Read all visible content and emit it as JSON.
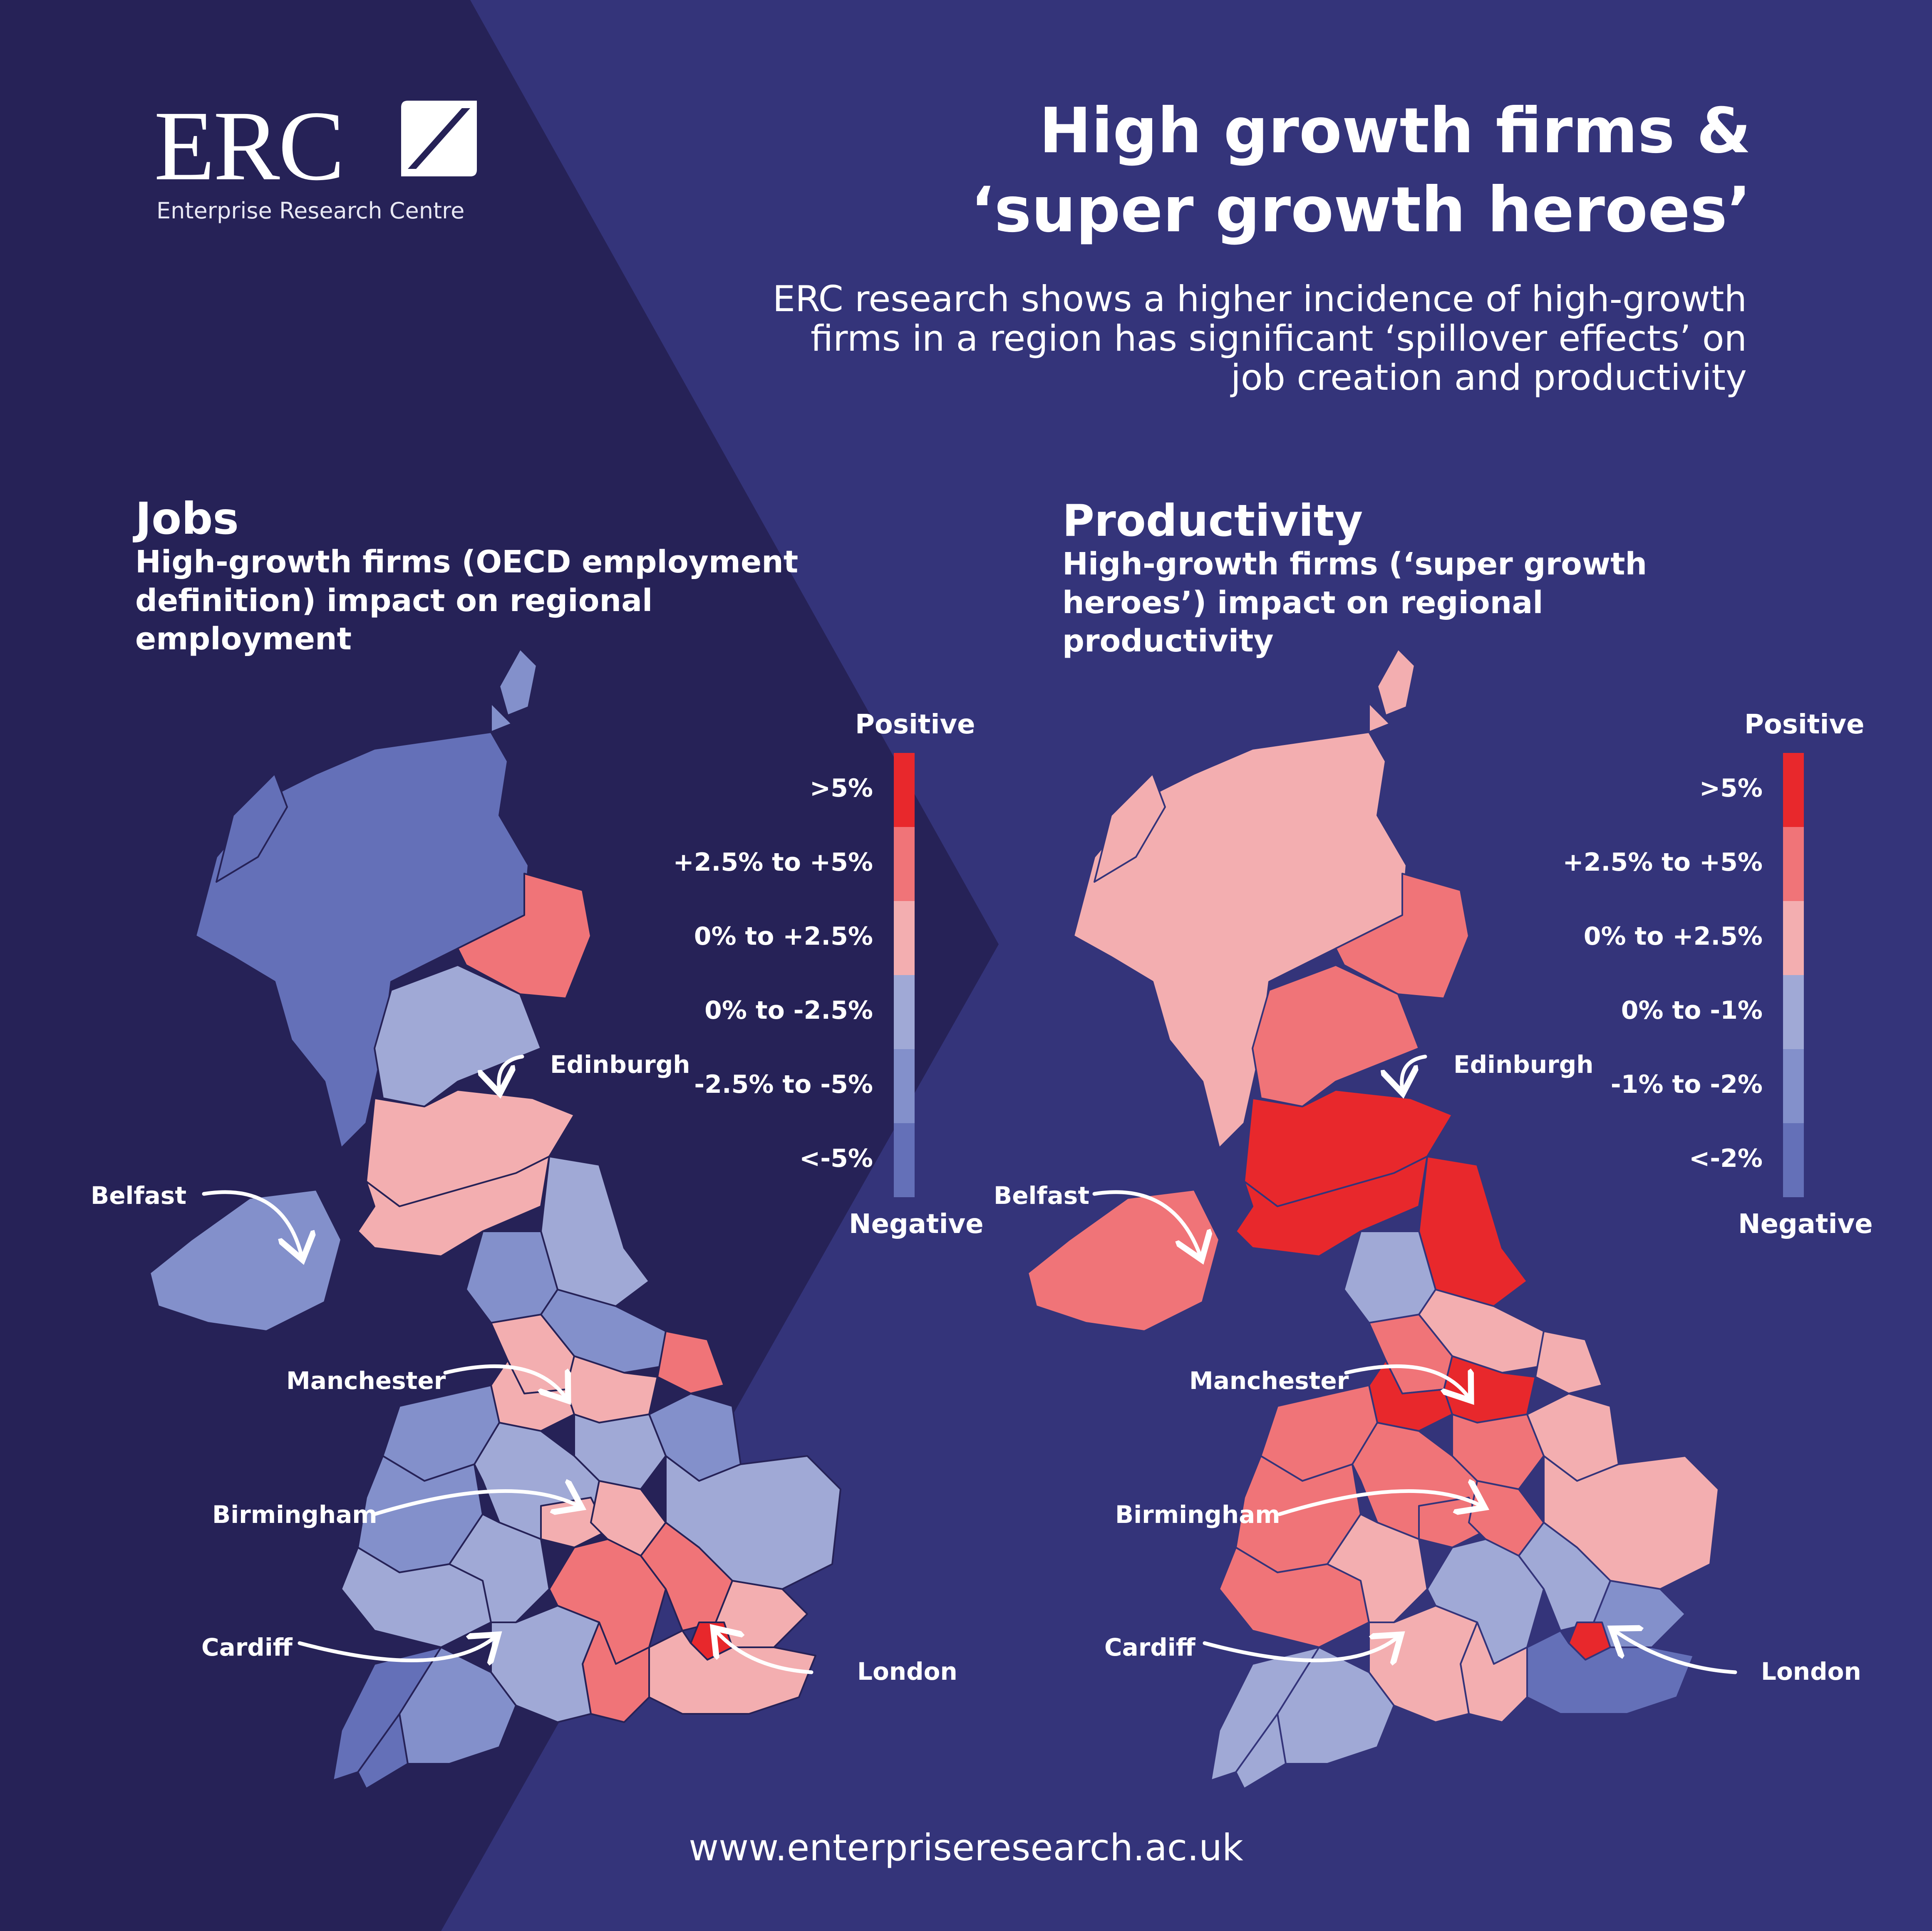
{
  "logo": {
    "letters": "ERC",
    "subtitle": "Enterprise Research Centre",
    "mark_icon": "slash-square-icon"
  },
  "header": {
    "title_line1": "High growth firms &",
    "title_line2": "‘super growth heroes’",
    "intro": "ERC research shows a higher incidence of high-growth firms in a region has significant ‘spillover effects’ on job creation and productivity"
  },
  "colors": {
    "background": "#34347a",
    "left_panel": "#262257",
    "scale": [
      "#e8282c",
      "#f07478",
      "#f3aeb0",
      "#a0a9d6",
      "#8390cb",
      "#6470b8"
    ]
  },
  "jobs": {
    "title": "Jobs",
    "subtitle": "High-growth firms (OECD employment definition) impact on regional employment",
    "legend": {
      "top": "Positive",
      "bottom": "Negative",
      "labels": [
        ">5%",
        "+2.5% to +5%",
        "0% to +2.5%",
        "0% to -2.5%",
        "-2.5% to -5%",
        "<-5%"
      ]
    },
    "cities": [
      "Edinburgh",
      "Belfast",
      "Manchester",
      "Birmingham",
      "Cardiff",
      "London"
    ]
  },
  "productivity": {
    "title": "Productivity",
    "subtitle": "High-growth firms (‘super growth heroes’) impact on regional productivity",
    "legend": {
      "top": "Positive",
      "bottom": "Negative",
      "labels": [
        ">5%",
        "+2.5% to +5%",
        "0% to +2.5%",
        "0% to -1%",
        "-1% to -2%",
        "<-2%"
      ]
    },
    "cities": [
      "Edinburgh",
      "Belfast",
      "Manchester",
      "Birmingham",
      "Cardiff",
      "London"
    ]
  },
  "footer": {
    "url": "www.enterpriseresearch.ac.uk"
  }
}
